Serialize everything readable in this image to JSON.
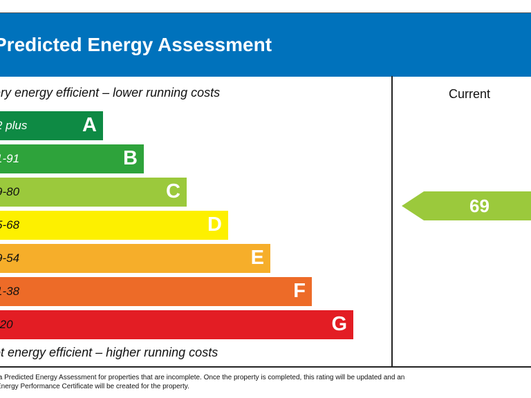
{
  "header": {
    "title": "Predicted Energy Assessment"
  },
  "scale": {
    "top_caption": "ery energy efficient – lower running costs",
    "bottom_caption": "ot energy efficient – higher running costs",
    "bands": [
      {
        "letter": "A",
        "range": "2 plus",
        "color": "#008054"
      },
      {
        "letter": "B",
        "range": "1-91",
        "color": "#19b459"
      },
      {
        "letter": "C",
        "range": "9-80",
        "color": "#8dce46"
      },
      {
        "letter": "D",
        "range": "5-68",
        "color": "#ffd500"
      },
      {
        "letter": "E",
        "range": "9-54",
        "color": "#fcaa65"
      },
      {
        "letter": "F",
        "range": "1-38",
        "color": "#ef8023"
      },
      {
        "letter": "G",
        "range": "-20",
        "color": "#e9153b"
      }
    ]
  },
  "current": {
    "label": "Current",
    "value": "69",
    "color": "#8dce46"
  },
  "footer": {
    "line1": "s a Predicted Energy Assessment for properties that are incomplete. Once the property is completed, this rating will be updated and an",
    "line2": "l Energy Performance Certificate will be created for the property."
  }
}
